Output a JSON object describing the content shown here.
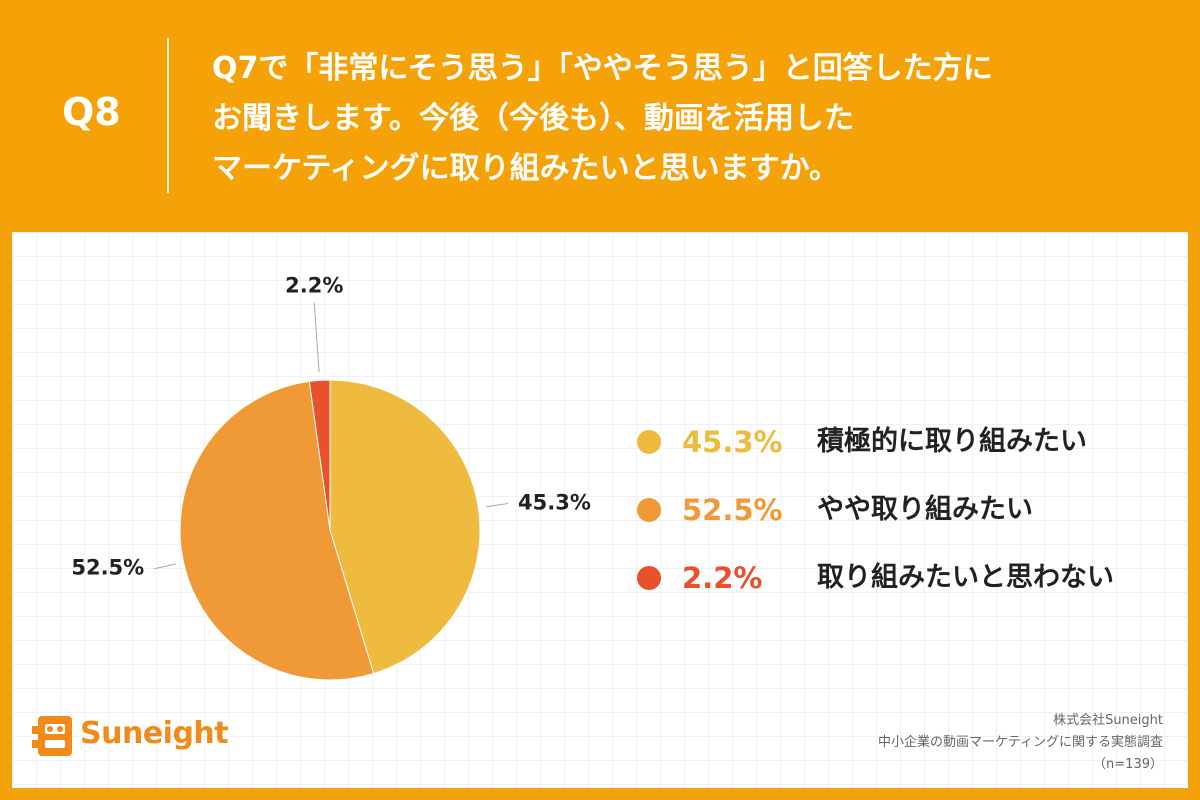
{
  "header": {
    "q_label": "Q8",
    "question_lines": [
      "Q7で「非常にそう思う」「ややそう思う」と回答した方に",
      "お聞きします。今後（今後も）、動画を活用した",
      "マーケティングに取り組みたいと思いますか。"
    ]
  },
  "chart_data": {
    "type": "pie",
    "categories": [
      "積極的に取り組みたい",
      "やや取り組みたい",
      "取り組みたいと思わない"
    ],
    "values": [
      45.3,
      52.5,
      2.2
    ],
    "data_labels": [
      "45.3%",
      "52.5%",
      "2.2%"
    ],
    "colors": [
      "#eebb3f",
      "#ef9a36",
      "#e8512b"
    ],
    "legend": "right",
    "start_angle_deg": 0,
    "direction": "clockwise"
  },
  "legend": [
    {
      "pct": "45.3%",
      "label": "積極的に取り組みたい",
      "color": "#eebb3f"
    },
    {
      "pct": "52.5%",
      "label": "やや取り組みたい",
      "color": "#ef9a36"
    },
    {
      "pct": "2.2%",
      "label": "取り組みたいと思わない",
      "color": "#e8512b"
    }
  ],
  "footer": {
    "company": "株式会社Suneight",
    "survey": "中小企業の動画マーケティングに関する実態調査",
    "sample": "（n=139）"
  },
  "logo": {
    "text": "Suneight",
    "icon": "suneight-logo-icon",
    "color": "#f08a1b"
  }
}
